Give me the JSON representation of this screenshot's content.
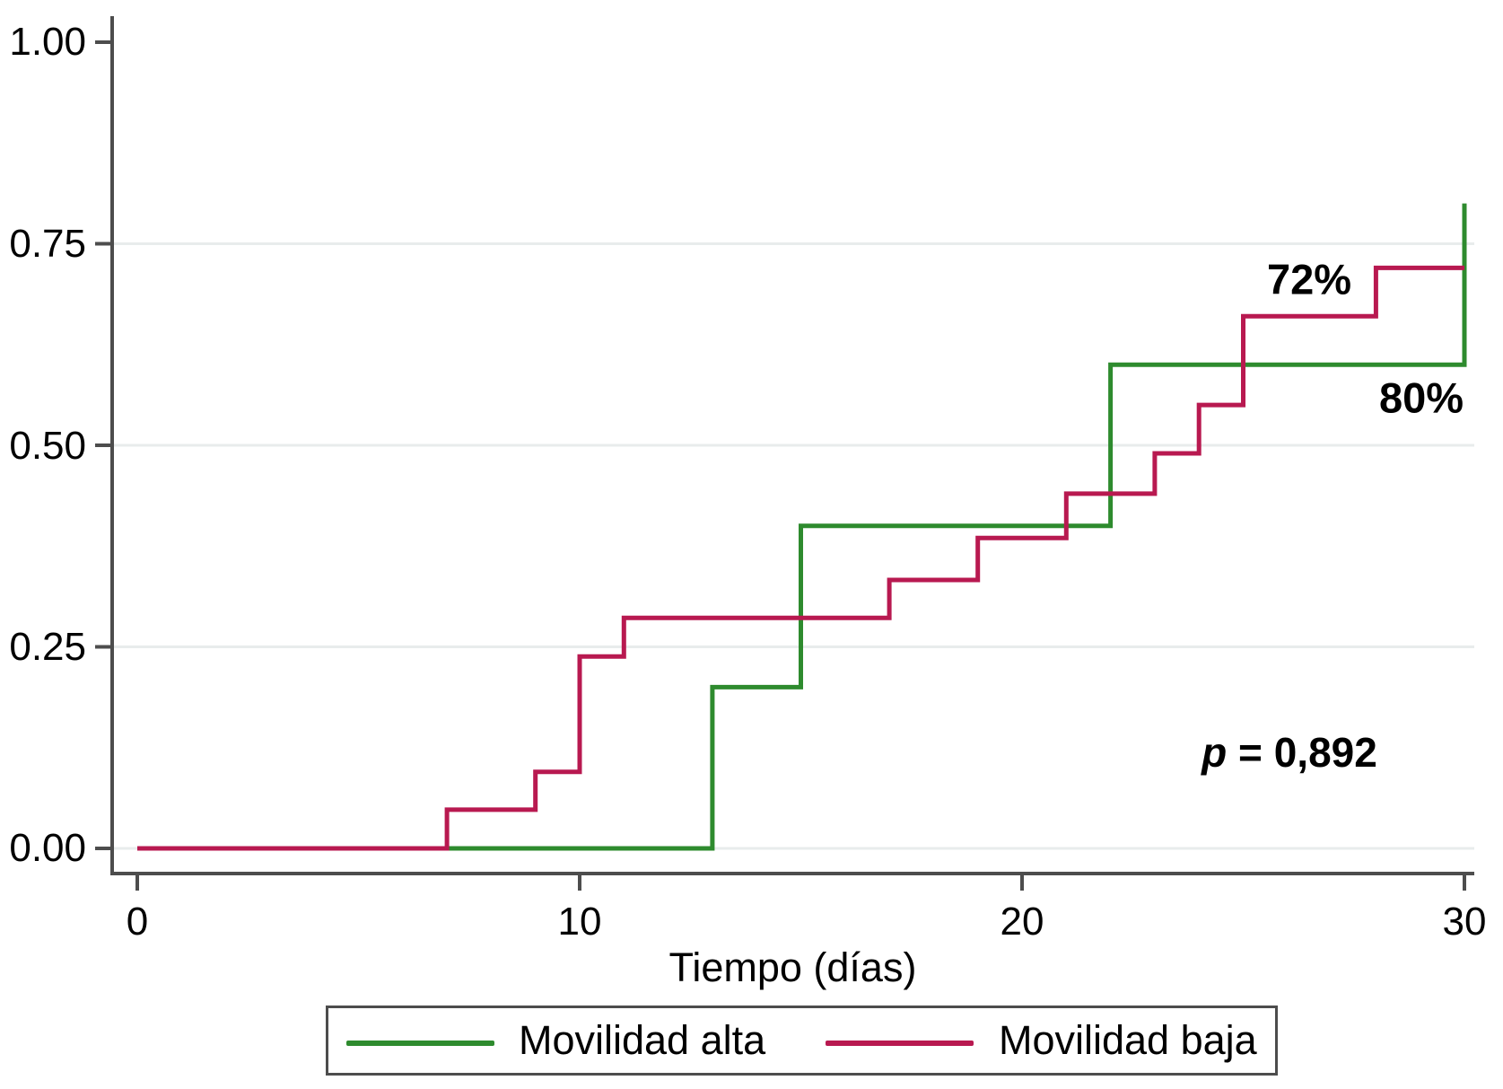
{
  "chart_data": {
    "type": "line",
    "subtype": "kaplan-meier-cumulative-incidence-steps",
    "title": "",
    "xlabel": "Tiempo (días)",
    "ylabel": "",
    "xlim": [
      0,
      30
    ],
    "ylim": [
      0,
      1
    ],
    "grid": true,
    "gridline_values": [
      0,
      0.25,
      0.5,
      0.75
    ],
    "legend_position": "bottom",
    "xticks": [
      {
        "value": 0,
        "label": "0"
      },
      {
        "value": 10,
        "label": "10"
      },
      {
        "value": 20,
        "label": "20"
      },
      {
        "value": 30,
        "label": "30"
      }
    ],
    "yticks": [
      {
        "value": 1.0,
        "label": "1.00"
      },
      {
        "value": 0.75,
        "label": "0.75"
      },
      {
        "value": 0.5,
        "label": "0.50"
      },
      {
        "value": 0.25,
        "label": "0.25"
      },
      {
        "value": 0.0,
        "label": "0.00"
      }
    ],
    "series": [
      {
        "name": "Movilidad alta",
        "color": "#2e8b2e",
        "final_value_label": "80%",
        "points": [
          [
            0,
            0
          ],
          [
            13,
            0
          ],
          [
            13,
            0.2
          ],
          [
            15,
            0.2
          ],
          [
            15,
            0.4
          ],
          [
            22,
            0.4
          ],
          [
            22,
            0.6
          ],
          [
            30,
            0.6
          ],
          [
            30,
            0.8
          ]
        ]
      },
      {
        "name": "Movilidad baja",
        "color": "#b81950",
        "final_value_label": "72%",
        "points": [
          [
            0,
            0
          ],
          [
            7,
            0
          ],
          [
            7,
            0.048
          ],
          [
            9,
            0.048
          ],
          [
            9,
            0.095
          ],
          [
            10,
            0.095
          ],
          [
            10,
            0.238
          ],
          [
            11,
            0.238
          ],
          [
            11,
            0.286
          ],
          [
            17,
            0.286
          ],
          [
            17,
            0.333
          ],
          [
            19,
            0.333
          ],
          [
            19,
            0.385
          ],
          [
            21,
            0.385
          ],
          [
            21,
            0.44
          ],
          [
            23,
            0.44
          ],
          [
            23,
            0.49
          ],
          [
            24,
            0.49
          ],
          [
            24,
            0.55
          ],
          [
            25,
            0.55
          ],
          [
            25,
            0.66
          ],
          [
            28,
            0.66
          ],
          [
            28,
            0.72
          ],
          [
            30,
            0.72
          ]
        ]
      }
    ],
    "annotations": {
      "red_final": "72%",
      "green_final": "80%",
      "p_italic": "p",
      "p_rest": " = 0,892"
    },
    "axis_color": "#4d4d4d",
    "gridline_color": "#e8ecec"
  }
}
